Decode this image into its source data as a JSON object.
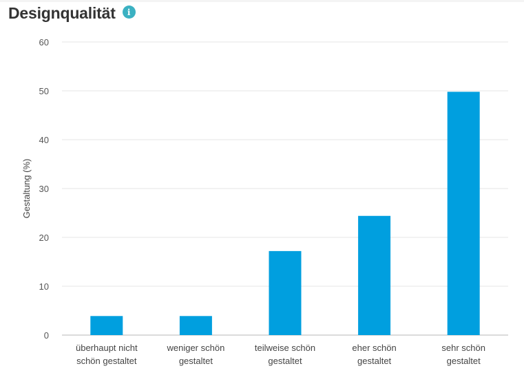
{
  "header": {
    "title": "Designqualität",
    "info_icon": "info-icon"
  },
  "colors": {
    "bar": "#009fdf",
    "grid": "#e6e6e6",
    "axis": "#cfcfcf",
    "info": "#3bb1c2"
  },
  "chart_data": {
    "type": "bar",
    "title": "",
    "xlabel": "",
    "ylabel": "Gestaltung (%)",
    "ylim": [
      0,
      60
    ],
    "yticks": [
      0,
      10,
      20,
      30,
      40,
      50,
      60
    ],
    "grid": true,
    "categories": [
      [
        "überhaupt nicht",
        "schön gestaltet"
      ],
      [
        "weniger schön",
        "gestaltet"
      ],
      [
        "teilweise schön",
        "gestaltet"
      ],
      [
        "eher schön",
        "gestaltet"
      ],
      [
        "sehr schön",
        "gestaltet"
      ]
    ],
    "values": [
      3.9,
      3.9,
      17.2,
      24.4,
      49.8
    ]
  }
}
